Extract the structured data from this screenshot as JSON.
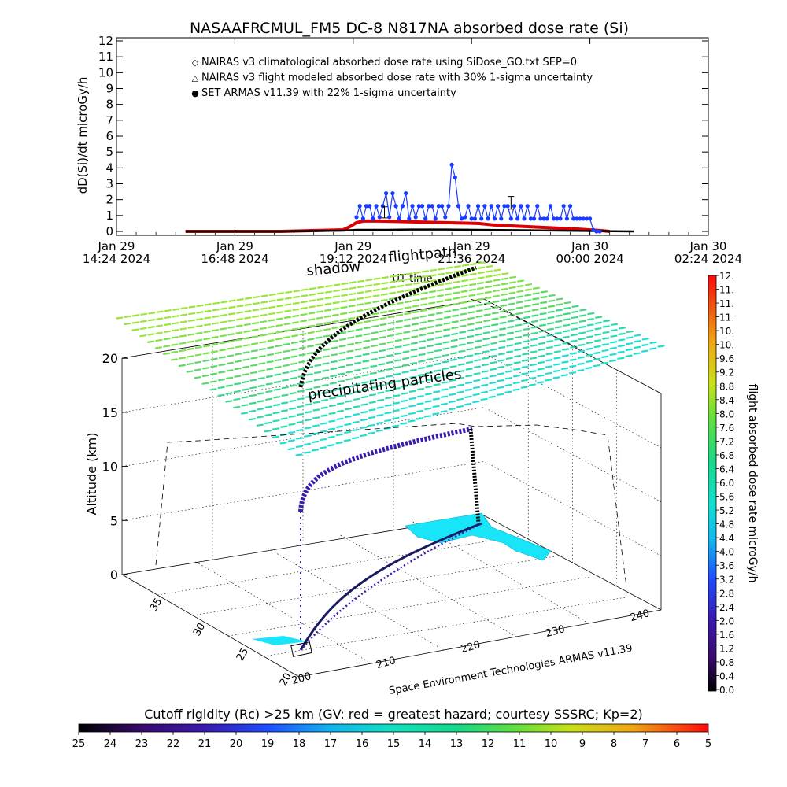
{
  "chart_data": [
    {
      "type": "line",
      "title": "NASAAFRCMUL_FM5 DC-8   N817NA absorbed dose rate (Si)",
      "ylabel": "dD(Si)/dt microGy/h",
      "xlabel": "UT time",
      "ylim": [
        0,
        12
      ],
      "yticks": [
        "0",
        "1",
        "2",
        "3",
        "4",
        "5",
        "6",
        "7",
        "8",
        "9",
        "10",
        "11",
        "12"
      ],
      "xticks": [
        {
          "line1": "Jan 29",
          "line2": "14:24 2024",
          "t": 0
        },
        {
          "line1": "Jan 29",
          "line2": "16:48 2024",
          "t": 144
        },
        {
          "line1": "Jan 29",
          "line2": "19:12 2024",
          "t": 288
        },
        {
          "line1": "Jan 29",
          "line2": "21:36 2024",
          "t": 432
        },
        {
          "line1": "Jan 30",
          "line2": "00:00 2024",
          "t": 576
        },
        {
          "line1": "Jan 30",
          "line2": "02:24 2024",
          "t": 720
        }
      ],
      "legend": [
        {
          "symbol": "◇",
          "color": "#dd0000",
          "text": "NAIRAS v3 climatological absorbed dose rate using SiDose_GO.txt SEP=0"
        },
        {
          "symbol": "△",
          "color": "#000000",
          "text": "NAIRAS v3 flight modeled absorbed dose rate with 30% 1-sigma uncertainty"
        },
        {
          "symbol": "●",
          "color": "#1a3cff",
          "text": "SET ARMAS v11.39 with 22% 1-sigma uncertainty"
        }
      ],
      "legend_position": "top-left",
      "series": [
        {
          "name": "NAIRAS v3 climatological absorbed dose rate using SiDose_GO.txt SEP=0",
          "color": "#dd0000",
          "x": [
            84,
            200,
            276,
            284,
            292,
            300,
            320,
            360,
            400,
            440,
            460,
            480,
            520,
            560,
            590,
            600
          ],
          "y": [
            0,
            0,
            0.1,
            0.3,
            0.55,
            0.65,
            0.65,
            0.6,
            0.55,
            0.5,
            0.4,
            0.35,
            0.25,
            0.15,
            0.05,
            0
          ]
        },
        {
          "name": "NAIRAS v3 flight modeled absorbed dose rate with 30% 1-sigma uncertainty",
          "color": "#000000",
          "x": [
            84,
            200,
            276,
            292,
            330,
            360,
            400,
            440,
            480,
            540,
            590,
            630
          ],
          "y": [
            0,
            0,
            0.05,
            0.1,
            0.1,
            0.12,
            0.12,
            0.1,
            0.08,
            0.05,
            0.02,
            0
          ]
        },
        {
          "name": "SET ARMAS v11.39 with 22% 1-sigma uncertainty",
          "color": "#1a3cff",
          "x": [
            292,
            296,
            300,
            304,
            308,
            312,
            316,
            320,
            324,
            328,
            332,
            336,
            340,
            344,
            348,
            352,
            356,
            360,
            364,
            368,
            372,
            376,
            380,
            384,
            388,
            392,
            396,
            400,
            404,
            408,
            412,
            416,
            420,
            424,
            428,
            432,
            436,
            440,
            444,
            448,
            452,
            456,
            460,
            464,
            468,
            472,
            476,
            480,
            484,
            488,
            492,
            496,
            500,
            504,
            508,
            512,
            516,
            520,
            524,
            528,
            532,
            536,
            540,
            544,
            548,
            552,
            556,
            560,
            564,
            568,
            572,
            576,
            580,
            584,
            588
          ],
          "y": [
            0.9,
            1.6,
            0.8,
            1.6,
            1.6,
            0.8,
            1.6,
            0.9,
            1.6,
            2.4,
            0.9,
            2.4,
            1.6,
            0.8,
            1.6,
            2.4,
            0.8,
            1.6,
            0.9,
            1.6,
            1.6,
            0.8,
            1.6,
            1.6,
            0.8,
            1.6,
            1.6,
            0.9,
            1.6,
            4.2,
            3.4,
            1.6,
            0.8,
            0.9,
            1.6,
            0.8,
            0.8,
            1.6,
            0.8,
            1.6,
            0.8,
            1.6,
            0.8,
            1.6,
            0.8,
            1.6,
            1.6,
            0.8,
            1.6,
            0.8,
            1.6,
            0.8,
            1.6,
            0.8,
            0.8,
            1.6,
            0.8,
            0.8,
            0.8,
            1.6,
            0.8,
            0.8,
            0.8,
            1.6,
            0.8,
            1.6,
            0.8,
            0.8,
            0.8,
            0.8,
            0.8,
            0.8,
            0.1,
            0,
            0
          ]
        }
      ]
    },
    {
      "type": "scatter",
      "title": "",
      "zlabel": "Altitude (km)",
      "zticks": [
        "0",
        "5",
        "10",
        "15",
        "20"
      ],
      "lat_ticks": [
        "20",
        "25",
        "30",
        "35"
      ],
      "lon_ticks": [
        "200",
        "210",
        "220",
        "230",
        "240"
      ],
      "annotations": {
        "shadow": "shadow",
        "flightpath": "flightpath",
        "precip": "precipitating particles",
        "credit": "Space Environment Technologies ARMAS v11.39"
      }
    },
    {
      "type": "heatmap",
      "title": "flight absorbed dose rate microGy/h",
      "colorbar_ticks": [
        "0.0",
        "0.4",
        "0.8",
        "1.2",
        "1.6",
        "2.0",
        "2.4",
        "2.8",
        "3.2",
        "3.6",
        "4.0",
        "4.4",
        "4.8",
        "5.2",
        "5.6",
        "6.0",
        "6.4",
        "6.8",
        "7.2",
        "7.6",
        "8.0",
        "8.4",
        "8.8",
        "9.2",
        "9.6",
        "10.",
        "10.",
        "11.",
        "11.",
        "11.",
        "12."
      ]
    },
    {
      "type": "heatmap",
      "title": "Cutoff rigidity (Rc) >25 km (GV: red = greatest hazard; courtesy SSSRC; Kp=2)",
      "colorbar_ticks": [
        "25",
        "24",
        "23",
        "22",
        "21",
        "20",
        "19",
        "18",
        "17",
        "16",
        "15",
        "14",
        "13",
        "12",
        "11",
        "10",
        "9",
        "8",
        "7",
        "6",
        "5"
      ]
    }
  ]
}
